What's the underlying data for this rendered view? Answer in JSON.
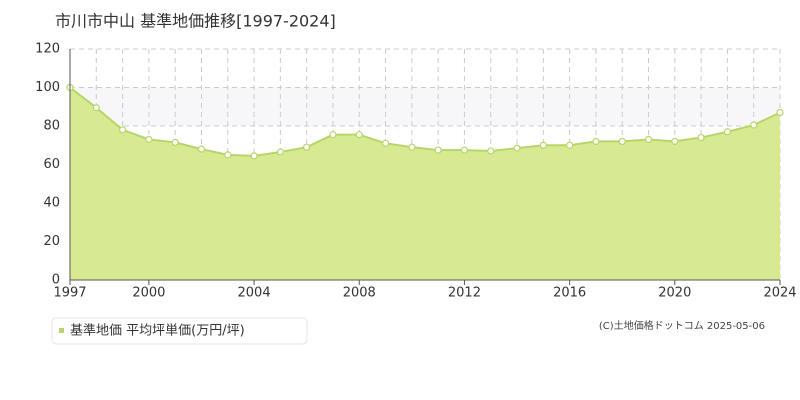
{
  "chart_data": {
    "type": "area",
    "title": "市川市中山  基準地価推移[1997-2024]",
    "note": "(C)土地価格ドットコム 2025-05-06",
    "x": [
      1997,
      1998,
      1999,
      2000,
      2001,
      2002,
      2003,
      2004,
      2005,
      2006,
      2007,
      2008,
      2009,
      2010,
      2011,
      2012,
      2013,
      2014,
      2015,
      2016,
      2017,
      2018,
      2019,
      2020,
      2021,
      2022,
      2023,
      2024
    ],
    "series": [
      {
        "name": "基準地価 平均坪単価(万円/坪)",
        "color": "#d8ea91",
        "line_color": "#b6d66a",
        "values": [
          100,
          89.5,
          78,
          73,
          71.5,
          68,
          65,
          64.5,
          66.5,
          69,
          75.5,
          75.5,
          71,
          69,
          67.5,
          67.5,
          67,
          68.5,
          70,
          70,
          72,
          72,
          73,
          72,
          74,
          77,
          80.5,
          87
        ]
      }
    ],
    "xlim": [
      1997,
      2024
    ],
    "xticks": [
      1997,
      2000,
      2004,
      2008,
      2012,
      2016,
      2020,
      2024
    ],
    "ylim": [
      0,
      120
    ],
    "yticks": [
      0,
      20,
      40,
      60,
      80,
      100,
      120
    ],
    "grid": true,
    "legend": "bottom-left"
  }
}
